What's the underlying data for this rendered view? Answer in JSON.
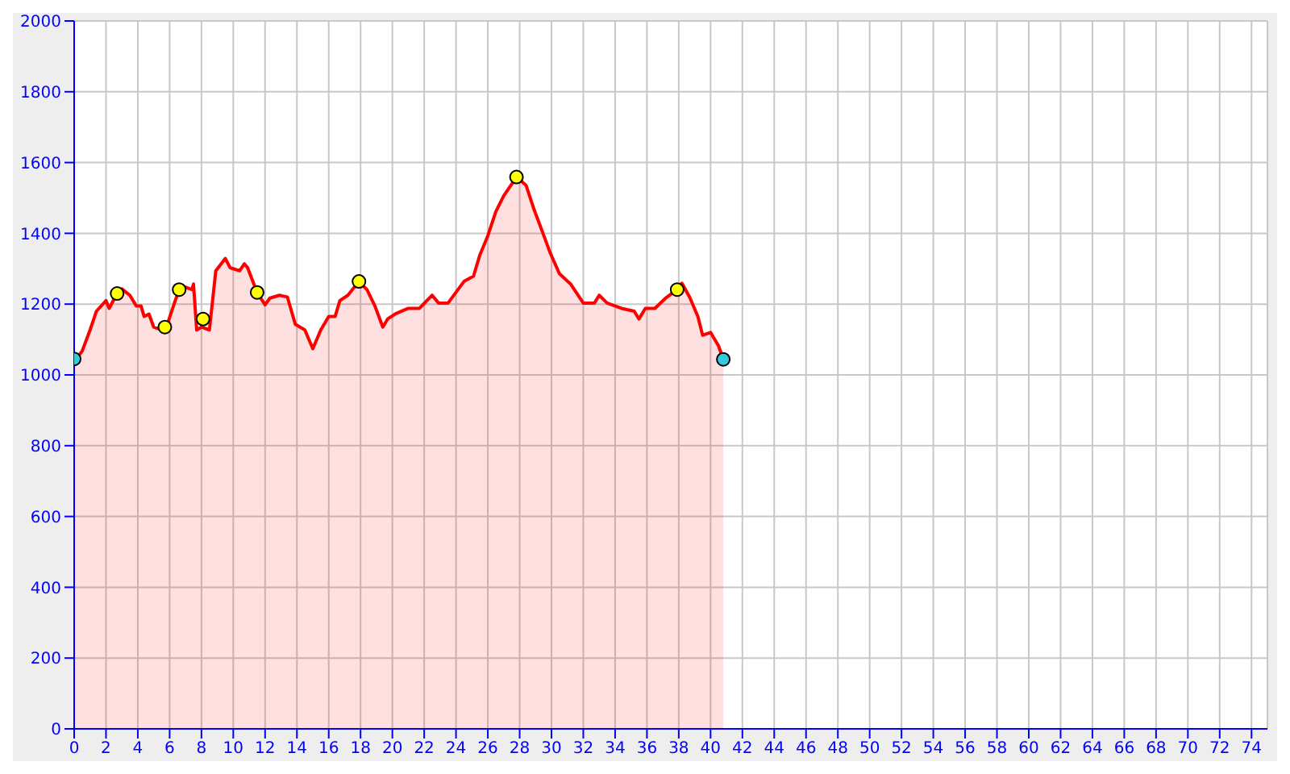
{
  "chart_data": {
    "type": "area",
    "xlim": [
      0,
      75
    ],
    "xticks": [
      0,
      2,
      4,
      6,
      8,
      10,
      12,
      14,
      16,
      18,
      20,
      22,
      24,
      26,
      28,
      30,
      32,
      34,
      36,
      38,
      40,
      42,
      44,
      46,
      48,
      50,
      52,
      54,
      56,
      58,
      60,
      62,
      64,
      66,
      68,
      70,
      72,
      74
    ],
    "ylim": [
      0,
      2000
    ],
    "yticks": [
      0,
      200,
      400,
      600,
      800,
      1000,
      1200,
      1400,
      1600,
      1800,
      2000
    ],
    "grid": true,
    "series": [
      {
        "color": "#ff0000",
        "x": [
          0,
          0.1,
          0.5,
          1.0,
          1.4,
          2.0,
          2.2,
          2.7,
          3.0,
          3.5,
          3.9,
          4.2,
          4.4,
          4.7,
          5.0,
          5.7,
          5.8,
          6.3,
          6.6,
          7.0,
          7.4,
          7.5,
          7.7,
          8.0,
          8.5,
          8.9,
          9.5,
          9.8,
          10.4,
          10.7,
          10.9,
          11.5,
          12.0,
          12.3,
          12.9,
          13.4,
          13.9,
          14.5,
          15.0,
          15.5,
          16.0,
          16.4,
          16.7,
          17.2,
          17.9,
          18.4,
          18.9,
          19.4,
          19.7,
          20.2,
          21.0,
          21.7,
          22.5,
          22.9,
          23.5,
          24.5,
          25.1,
          25.5,
          26.0,
          26.5,
          27.0,
          27.8,
          28.4,
          28.9,
          29.4,
          29.9,
          30.5,
          31.2,
          32.0,
          32.7,
          33.0,
          33.5,
          34.4,
          35.2,
          35.5,
          35.9,
          36.5,
          37.2,
          37.9,
          38.2,
          38.7,
          39.2,
          39.5,
          40.0,
          40.5,
          40.8
        ],
        "values": [
          1045,
          1044,
          1067,
          1127,
          1180,
          1210,
          1188,
          1230,
          1243,
          1225,
          1195,
          1195,
          1165,
          1172,
          1135,
          1124,
          1135,
          1203,
          1241,
          1248,
          1241,
          1257,
          1127,
          1135,
          1127,
          1294,
          1329,
          1303,
          1294,
          1314,
          1303,
          1233,
          1198,
          1217,
          1225,
          1220,
          1143,
          1127,
          1074,
          1127,
          1165,
          1165,
          1210,
          1225,
          1264,
          1241,
          1195,
          1135,
          1158,
          1173,
          1188,
          1188,
          1225,
          1203,
          1203,
          1264,
          1279,
          1339,
          1393,
          1461,
          1506,
          1559,
          1536,
          1468,
          1408,
          1347,
          1286,
          1257,
          1203,
          1203,
          1225,
          1203,
          1188,
          1180,
          1158,
          1188,
          1188,
          1218,
          1241,
          1259,
          1218,
          1165,
          1112,
          1120,
          1082,
          1044
        ]
      },
      {
        "type": "scatter",
        "color": "#ffff00",
        "marker": "circle",
        "x": [
          2.7,
          5.7,
          6.6,
          8.1,
          11.5,
          17.9,
          27.8,
          37.9
        ],
        "values": [
          1230,
          1135,
          1241,
          1158,
          1233,
          1264,
          1559,
          1241
        ]
      },
      {
        "type": "scatter",
        "color": "#33ccdd",
        "marker": "circle",
        "x": [
          0,
          40.8
        ],
        "values": [
          1045,
          1044
        ]
      }
    ]
  }
}
